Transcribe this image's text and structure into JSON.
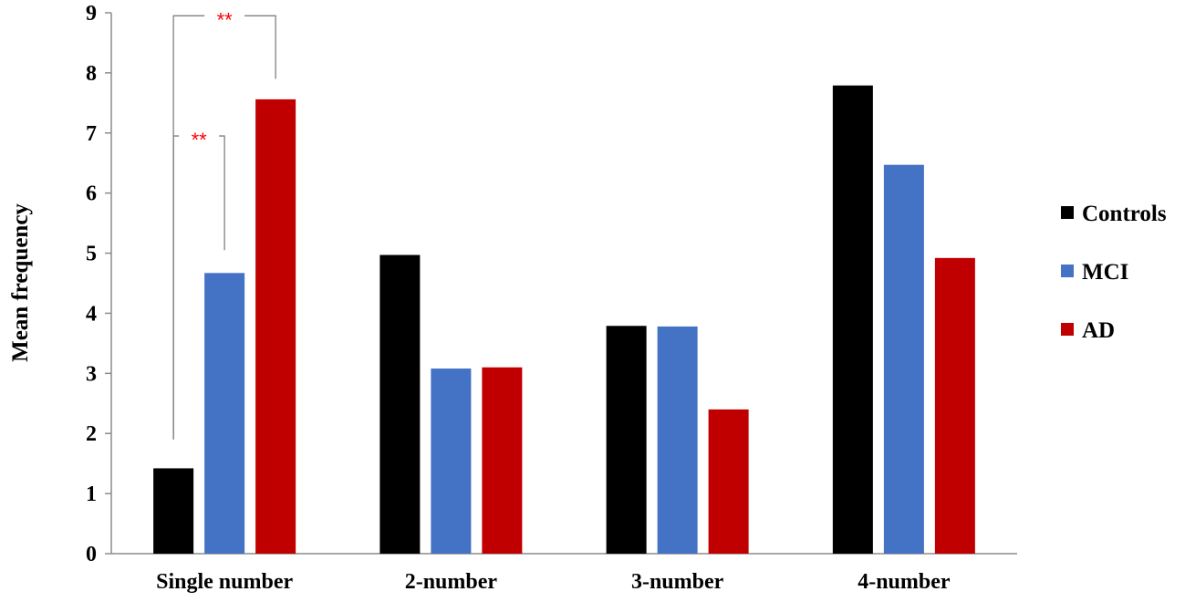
{
  "chart_data": {
    "type": "bar",
    "ylabel": "Mean frequency",
    "xlabel": "",
    "ylim": [
      0,
      9
    ],
    "yticks": [
      0,
      1,
      2,
      3,
      4,
      5,
      6,
      7,
      8,
      9
    ],
    "grid": false,
    "legend_position": "right",
    "categories": [
      "Single number",
      "2-number",
      "3-number",
      "4-number"
    ],
    "series": [
      {
        "name": "Controls",
        "color": "#000000",
        "values": [
          1.42,
          4.97,
          3.79,
          7.79
        ]
      },
      {
        "name": "MCI",
        "color": "#4472c4",
        "values": [
          4.67,
          3.08,
          3.78,
          6.47
        ]
      },
      {
        "name": "AD",
        "color": "#c00000",
        "values": [
          7.56,
          3.1,
          2.4,
          4.92
        ]
      }
    ],
    "significance": [
      {
        "category": "Single number",
        "from_series": "Controls",
        "to_series": "AD",
        "label": "**"
      },
      {
        "category": "Single number",
        "from_series": "Controls",
        "to_series": "MCI",
        "label": "**"
      }
    ],
    "significance_color": "#ff0000"
  }
}
